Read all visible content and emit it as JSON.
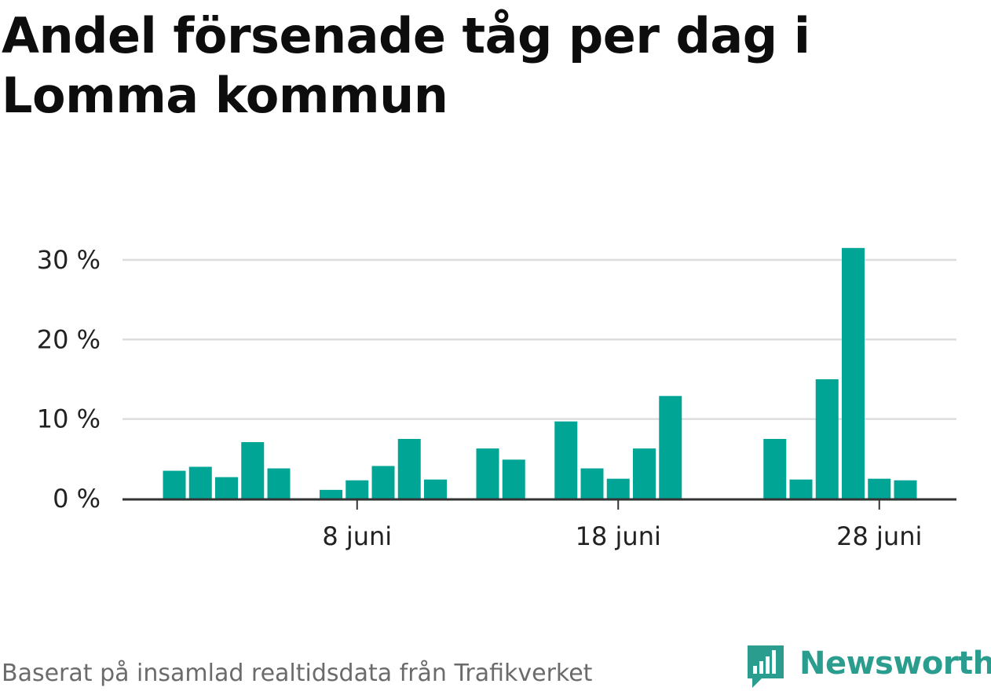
{
  "title": "Andel försenade tåg per dag i Lomma kommun",
  "source": "Baserat på insamlad realtidsdata från Trafikverket",
  "brand": "Newsworthy",
  "colors": {
    "bar": "#00a596",
    "grid": "#dddddd",
    "axis": "#333333",
    "brand": "#2a9d8f"
  },
  "chart_data": {
    "type": "bar",
    "title": "Andel försenade tåg per dag i Lomma kommun",
    "xlabel": "",
    "ylabel": "",
    "x_unit": "day of June",
    "x": [
      1,
      2,
      3,
      4,
      5,
      7,
      8,
      9,
      10,
      11,
      13,
      14,
      16,
      17,
      18,
      19,
      20,
      24,
      25,
      26,
      27,
      28,
      29
    ],
    "values": [
      3.5,
      4.0,
      2.7,
      7.1,
      3.8,
      1.1,
      2.3,
      4.1,
      7.5,
      2.4,
      6.3,
      4.9,
      9.7,
      3.8,
      2.5,
      6.3,
      12.9,
      7.5,
      2.4,
      15.0,
      31.5,
      2.5,
      2.3
    ],
    "xlim": [
      1,
      29
    ],
    "ylim": [
      0,
      31.5
    ],
    "yticks": [
      0,
      10,
      20,
      30
    ],
    "ytick_labels": [
      "0 %",
      "10 %",
      "20 %",
      "30 %"
    ],
    "xticks": [
      8,
      18,
      28
    ],
    "xtick_labels": [
      "8 juni",
      "18 juni",
      "28 juni"
    ],
    "grid": true,
    "legend": "none"
  }
}
